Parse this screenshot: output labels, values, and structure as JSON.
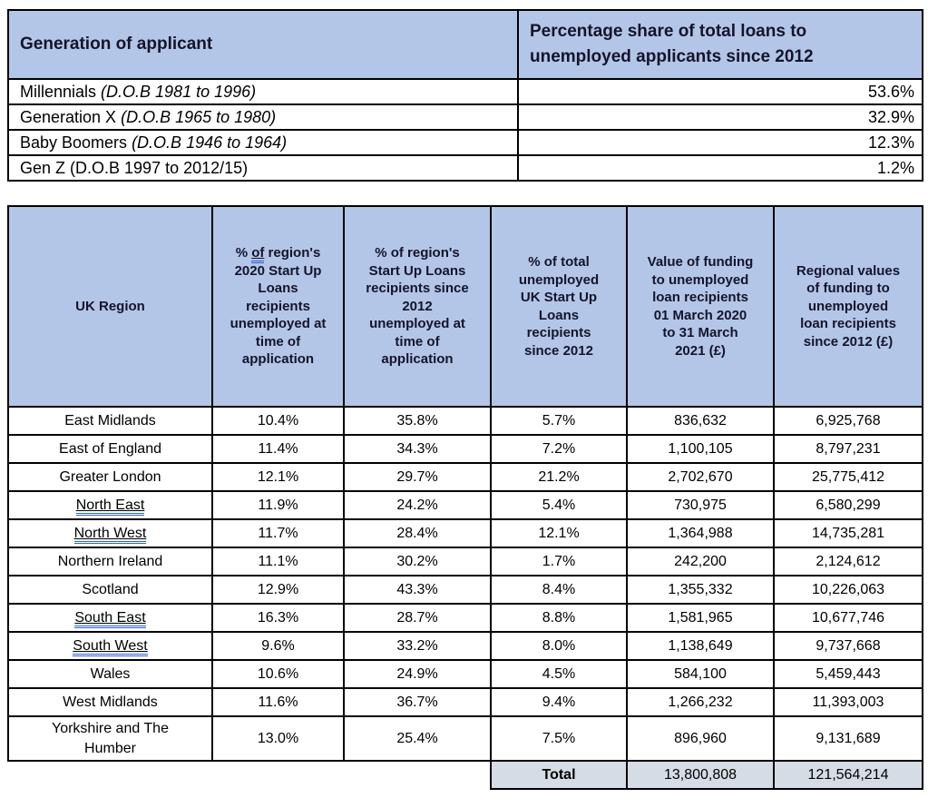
{
  "colors": {
    "header_bg": "#b4c6e7",
    "header_text": "#14142b",
    "total_row_bg": "#d6dce5",
    "grammar_underline_blue": "#2e62d9",
    "border": "#000000"
  },
  "generation_table": {
    "header": {
      "col1": "Generation of applicant",
      "col2": "Percentage share of total loans to\nunemployed applicants since 2012"
    },
    "rows": [
      {
        "label": "Millennials",
        "dob": "(D.O.B 1981 to 1996)",
        "dob_italic": true,
        "value": "53.6%"
      },
      {
        "label": "Generation X",
        "dob": "(D.O.B 1965 to 1980)",
        "dob_italic": true,
        "value": "32.9%"
      },
      {
        "label": "Baby Boomers",
        "dob": "(D.O.B 1946 to 1964)",
        "dob_italic": true,
        "value": "12.3%"
      },
      {
        "label": "Gen Z",
        "dob": "(D.O.B 1997 to 2012/15)",
        "dob_italic": false,
        "value": "1.2%"
      }
    ]
  },
  "region_table": {
    "headers": [
      {
        "text": "UK Region"
      },
      {
        "pre": "% ",
        "grammar_word": "of",
        "post": " region's\n2020 Start Up\nLoans\nrecipients\nunemployed at\ntime of\napplication"
      },
      {
        "text": "% of region's\nStart Up Loans\nrecipients since\n2012\nunemployed at\ntime of\napplication"
      },
      {
        "text": "% of total\nunemployed\nUK Start Up\nLoans\nrecipients\nsince 2012"
      },
      {
        "text": "Value of funding\nto unemployed\nloan recipients\n01 March 2020\nto 31 March\n2021 (£)"
      },
      {
        "text": "Regional values\nof funding to\nunemployed\nloan recipients\nsince 2012 (£)"
      }
    ],
    "rows": [
      {
        "region": "East Midlands",
        "grammar_underline": false,
        "pct_2020": "10.4%",
        "pct_since_2012": "35.8%",
        "pct_total": "5.7%",
        "funding_2020_21": "836,632",
        "funding_since_2012": "6,925,768"
      },
      {
        "region": "East of England",
        "grammar_underline": false,
        "pct_2020": "11.4%",
        "pct_since_2012": "34.3%",
        "pct_total": "7.2%",
        "funding_2020_21": "1,100,105",
        "funding_since_2012": "8,797,231"
      },
      {
        "region": "Greater London",
        "grammar_underline": false,
        "pct_2020": "12.1%",
        "pct_since_2012": "29.7%",
        "pct_total": "21.2%",
        "funding_2020_21": "2,702,670",
        "funding_since_2012": "25,775,412"
      },
      {
        "region": "North East",
        "grammar_underline": true,
        "pct_2020": "11.9%",
        "pct_since_2012": "24.2%",
        "pct_total": "5.4%",
        "funding_2020_21": "730,975",
        "funding_since_2012": "6,580,299"
      },
      {
        "region": "North West",
        "grammar_underline": true,
        "pct_2020": "11.7%",
        "pct_since_2012": "28.4%",
        "pct_total": "12.1%",
        "funding_2020_21": "1,364,988",
        "funding_since_2012": "14,735,281"
      },
      {
        "region": "Northern Ireland",
        "grammar_underline": false,
        "pct_2020": "11.1%",
        "pct_since_2012": "30.2%",
        "pct_total": "1.7%",
        "funding_2020_21": "242,200",
        "funding_since_2012": "2,124,612"
      },
      {
        "region": "Scotland",
        "grammar_underline": false,
        "pct_2020": "12.9%",
        "pct_since_2012": "43.3%",
        "pct_total": "8.4%",
        "funding_2020_21": "1,355,332",
        "funding_since_2012": "10,226,063"
      },
      {
        "region": "South East",
        "grammar_underline": true,
        "pct_2020": "16.3%",
        "pct_since_2012": "28.7%",
        "pct_total": "8.8%",
        "funding_2020_21": "1,581,965",
        "funding_since_2012": "10,677,746"
      },
      {
        "region": "South West",
        "grammar_underline": true,
        "pct_2020": "9.6%",
        "pct_since_2012": "33.2%",
        "pct_total": "8.0%",
        "funding_2020_21": "1,138,649",
        "funding_since_2012": "9,737,668"
      },
      {
        "region": "Wales",
        "grammar_underline": false,
        "pct_2020": "10.6%",
        "pct_since_2012": "24.9%",
        "pct_total": "4.5%",
        "funding_2020_21": "584,100",
        "funding_since_2012": "5,459,443"
      },
      {
        "region": "West Midlands",
        "grammar_underline": false,
        "pct_2020": "11.6%",
        "pct_since_2012": "36.7%",
        "pct_total": "9.4%",
        "funding_2020_21": "1,266,232",
        "funding_since_2012": "11,393,003"
      },
      {
        "region": "Yorkshire and The Humber",
        "grammar_underline": false,
        "pct_2020": "13.0%",
        "pct_since_2012": "25.4%",
        "pct_total": "7.5%",
        "funding_2020_21": "896,960",
        "funding_since_2012": "9,131,689"
      }
    ],
    "total": {
      "label": "Total",
      "funding_2020_21": "13,800,808",
      "funding_since_2012": "121,564,214"
    }
  }
}
